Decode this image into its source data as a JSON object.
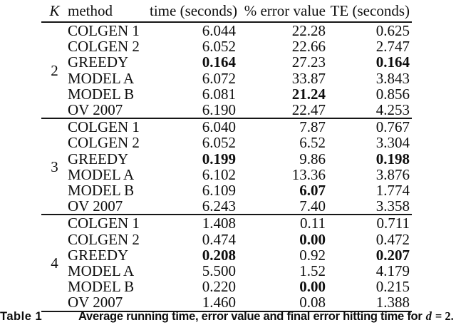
{
  "table": {
    "header": {
      "k": "K",
      "method": "method",
      "time": "time (seconds)",
      "error": "% error value",
      "te": "TE (seconds)"
    },
    "groups": [
      {
        "k": "2",
        "rows": [
          {
            "method": "COLGEN 1",
            "time": "6.044",
            "error": "22.28",
            "te": "0.625",
            "bold": []
          },
          {
            "method": "COLGEN 2",
            "time": "6.052",
            "error": "22.66",
            "te": "2.747",
            "bold": []
          },
          {
            "method": "GREEDY",
            "time": "0.164",
            "error": "27.23",
            "te": "0.164",
            "bold": [
              "time",
              "te"
            ]
          },
          {
            "method": "MODEL A",
            "time": "6.072",
            "error": "33.87",
            "te": "3.843",
            "bold": []
          },
          {
            "method": "MODEL B",
            "time": "6.081",
            "error": "21.24",
            "te": "0.856",
            "bold": [
              "error"
            ]
          },
          {
            "method": "OV 2007",
            "time": "6.190",
            "error": "22.47",
            "te": "4.253",
            "bold": []
          }
        ]
      },
      {
        "k": "3",
        "rows": [
          {
            "method": "COLGEN 1",
            "time": "6.040",
            "error": "7.87",
            "te": "0.767",
            "bold": []
          },
          {
            "method": "COLGEN 2",
            "time": "6.052",
            "error": "6.52",
            "te": "3.304",
            "bold": []
          },
          {
            "method": "GREEDY",
            "time": "0.199",
            "error": "9.86",
            "te": "0.198",
            "bold": [
              "time",
              "te"
            ]
          },
          {
            "method": "MODEL A",
            "time": "6.102",
            "error": "13.36",
            "te": "3.876",
            "bold": []
          },
          {
            "method": "MODEL B",
            "time": "6.109",
            "error": "6.07",
            "te": "1.774",
            "bold": [
              "error"
            ]
          },
          {
            "method": "OV 2007",
            "time": "6.243",
            "error": "7.40",
            "te": "3.358",
            "bold": []
          }
        ]
      },
      {
        "k": "4",
        "rows": [
          {
            "method": "COLGEN 1",
            "time": "1.408",
            "error": "0.11",
            "te": "0.711",
            "bold": []
          },
          {
            "method": "COLGEN 2",
            "time": "0.474",
            "error": "0.00",
            "te": "0.472",
            "bold": [
              "error"
            ]
          },
          {
            "method": "GREEDY",
            "time": "0.208",
            "error": "0.92",
            "te": "0.207",
            "bold": [
              "time",
              "te"
            ]
          },
          {
            "method": "MODEL A",
            "time": "5.500",
            "error": "1.52",
            "te": "4.179",
            "bold": []
          },
          {
            "method": "MODEL B",
            "time": "0.220",
            "error": "0.00",
            "te": "0.215",
            "bold": [
              "error"
            ]
          },
          {
            "method": "OV 2007",
            "time": "1.460",
            "error": "0.08",
            "te": "1.388",
            "bold": []
          }
        ]
      }
    ]
  },
  "caption": {
    "label": "Table 1",
    "text": "Average running time, error value and final error hitting time for",
    "variable": "d",
    "equals": "= 2."
  }
}
